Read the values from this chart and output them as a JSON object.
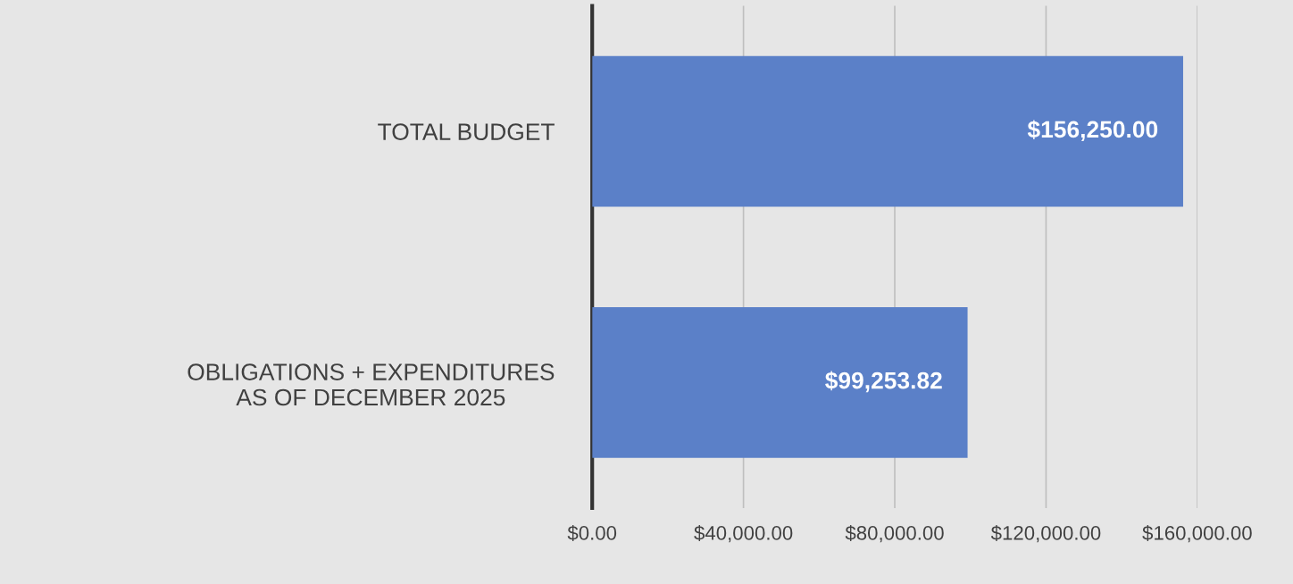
{
  "chart_data": {
    "type": "bar",
    "orientation": "horizontal",
    "categories": [
      "TOTAL BUDGET",
      "OBLIGATIONS + EXPENDITURES AS OF DECEMBER 2025"
    ],
    "values": [
      156250,
      99253.82
    ],
    "value_labels": [
      "$156,250.00",
      "$99,253.82"
    ],
    "color": "#5b80c8",
    "xlim": [
      0,
      160000
    ],
    "xticks": [
      {
        "value": 0,
        "label": "$0.00"
      },
      {
        "value": 40000,
        "label": "$40,000.00"
      },
      {
        "value": 80000,
        "label": "$80,000.00"
      },
      {
        "value": 120000,
        "label": "$120,000.00"
      },
      {
        "value": 160000,
        "label": "$160,000.00"
      }
    ],
    "grid": "x"
  }
}
